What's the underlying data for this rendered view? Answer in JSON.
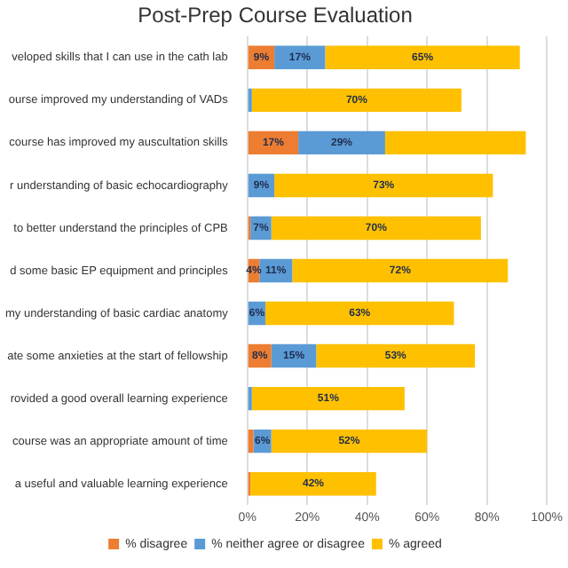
{
  "chart_data": {
    "type": "bar",
    "orientation": "horizontal",
    "stacked": true,
    "title": "Post-Prep Course Evaluation",
    "categories": [
      "veloped skills that I can use in the cath lab",
      "ourse improved my understanding of VADs",
      "course has improved my auscultation skills",
      "r understanding of basic echocardiography",
      "to better understand the principles of CPB",
      "d some basic EP equipment and principles",
      "my understanding of basic cardiac anatomy",
      "ate some anxieties at the start of fellowship",
      "rovided a good overall learning experience",
      "course was an appropriate amount of time",
      "a useful and valuable learning experience"
    ],
    "series": [
      {
        "name": "% disagree",
        "color": "#ed7d31",
        "values": [
          9,
          null,
          17,
          null,
          1,
          4,
          null,
          8,
          null,
          2,
          1
        ],
        "value_labels": [
          "9%",
          null,
          "17%",
          null,
          null,
          "4%",
          null,
          "8%",
          null,
          null,
          null
        ]
      },
      {
        "name": "% neither agree or disagree",
        "color": "#5b9bd5",
        "values": [
          17,
          1.5,
          29,
          9,
          7,
          11,
          6,
          15,
          1.5,
          6,
          null
        ],
        "value_labels": [
          "17%",
          null,
          "29%",
          "9%",
          "7%",
          "11%",
          "6%",
          "15%",
          null,
          "6%",
          null
        ]
      },
      {
        "name": "% agreed",
        "color": "#ffc000",
        "values": [
          65,
          70,
          47,
          73,
          70,
          72,
          63,
          53,
          51,
          52,
          42
        ],
        "value_labels": [
          "65%",
          "70%",
          null,
          "73%",
          "70%",
          "72%",
          "63%",
          "53%",
          "51%",
          "52%",
          "42%"
        ]
      }
    ],
    "xlim": [
      0,
      100
    ],
    "xticks": [
      {
        "value": 0,
        "label": "0%"
      },
      {
        "value": 20,
        "label": "20%"
      },
      {
        "value": 40,
        "label": "40%"
      },
      {
        "value": 60,
        "label": "60%"
      },
      {
        "value": 80,
        "label": "80%"
      },
      {
        "value": 100,
        "label": "100%"
      }
    ],
    "grid": "x",
    "legend": "bottom"
  }
}
